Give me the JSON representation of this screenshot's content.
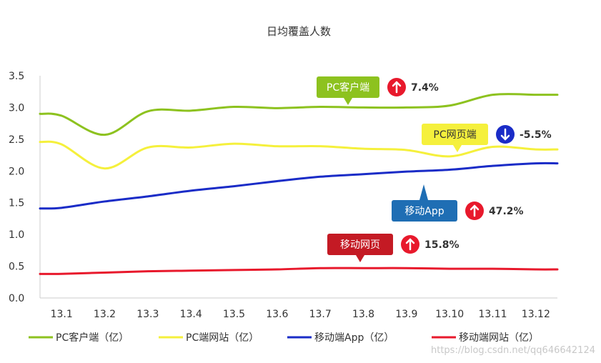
{
  "chart_data": {
    "type": "line",
    "title": "日均覆盖人数",
    "categories": [
      "13.1",
      "13.2",
      "13.3",
      "13.4",
      "13.5",
      "13.6",
      "13.7",
      "13.8",
      "13.9",
      "13.10",
      "13.11",
      "13.12"
    ],
    "ylim": [
      0,
      3.5
    ],
    "yticks": [
      "0.0",
      "0.5",
      "1.0",
      "1.5",
      "2.0",
      "2.5",
      "3.0",
      "3.5"
    ],
    "grid": false,
    "legend_placement": "bottom",
    "series": [
      {
        "key": "pc_client",
        "name": "PC客户端（亿）",
        "color": "#8dc21f",
        "values": [
          2.87,
          2.57,
          2.94,
          2.95,
          3.01,
          2.99,
          3.01,
          3.0,
          3.0,
          3.03,
          3.2,
          3.2
        ]
      },
      {
        "key": "pc_web",
        "name": "PC端网站（亿）",
        "color": "#f5f03c",
        "values": [
          2.42,
          2.04,
          2.37,
          2.37,
          2.43,
          2.39,
          2.39,
          2.35,
          2.33,
          2.23,
          2.38,
          2.34
        ]
      },
      {
        "key": "mobile_app",
        "name": "移动端App（亿）",
        "color": "#1a2cc7",
        "values": [
          1.42,
          1.52,
          1.6,
          1.69,
          1.76,
          1.84,
          1.91,
          1.95,
          1.99,
          2.02,
          2.08,
          2.12
        ]
      },
      {
        "key": "mobile_web",
        "name": "移动端网站（亿）",
        "color": "#e8192c",
        "values": [
          0.38,
          0.4,
          0.42,
          0.43,
          0.44,
          0.45,
          0.47,
          0.47,
          0.47,
          0.46,
          0.46,
          0.45
        ]
      }
    ],
    "annotations": [
      {
        "key": "pc_client",
        "label": "PC客户端",
        "box_color": "#8dc21f",
        "text_color": "#ffffff",
        "pointer": "down",
        "direction": "up",
        "badge_color": "#e8192c",
        "change": "7.4%"
      },
      {
        "key": "pc_web",
        "label": "PC网页端",
        "box_color": "#f5f03c",
        "text_color": "#333333",
        "pointer": "down",
        "direction": "down",
        "badge_color": "#1a2cc7",
        "change": "-5.5%"
      },
      {
        "key": "mobile_app",
        "label": "移动App",
        "box_color": "#1f6eb4",
        "text_color": "#ffffff",
        "pointer": "up",
        "direction": "up",
        "badge_color": "#e8192c",
        "change": "47.2%"
      },
      {
        "key": "mobile_web",
        "label": "移动网页",
        "box_color": "#c41a24",
        "text_color": "#ffffff",
        "pointer": "down",
        "direction": "up",
        "badge_color": "#e8192c",
        "change": "15.8%"
      }
    ]
  },
  "watermark": "https://blog.csdn.net/qq646642124"
}
